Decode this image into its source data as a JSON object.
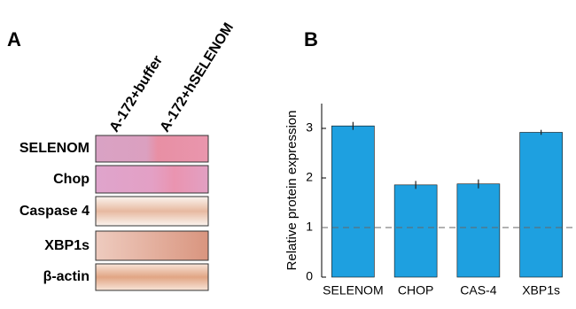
{
  "panel_a": {
    "label": "A",
    "lanes": [
      "A-172+buffer",
      "A-172+hSELENOM"
    ],
    "rows": [
      "SELENOM",
      "Chop",
      "Caspase 4",
      "XBP1s",
      "β-actin"
    ]
  },
  "chart_data": {
    "type": "bar",
    "panel_label": "B",
    "y_label": "Relative protein expression",
    "categories": [
      "SELENOM",
      "CHOP",
      "CAS-4",
      "XBP1s"
    ],
    "values": [
      3.05,
      1.86,
      1.88,
      2.92
    ],
    "errors": [
      0.08,
      0.08,
      0.09,
      0.05
    ],
    "color": "#1ea0e0",
    "ylim": [
      0,
      3.5
    ],
    "yticks": [
      0,
      1,
      2,
      3
    ],
    "reference_line": 1
  }
}
